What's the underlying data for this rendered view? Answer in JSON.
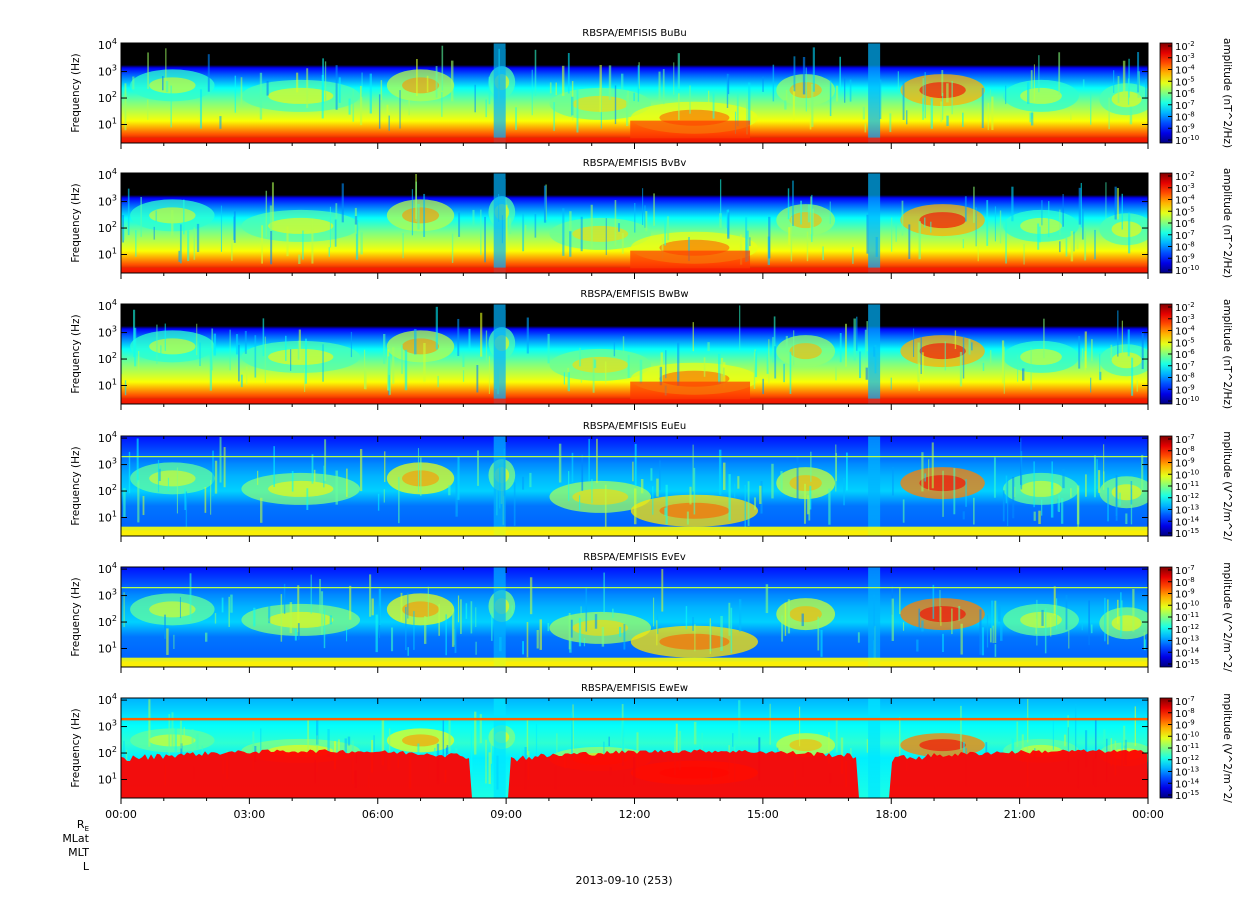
{
  "chart_data": [
    {
      "type": "heatmap",
      "title": "RBSPA/EMFISIS  BuBu",
      "ylabel": "Frequency (Hz)",
      "yscale": "log",
      "ylim": [
        2,
        12000
      ],
      "yticks": [
        {
          "base": "10",
          "exp": "1"
        },
        {
          "base": "10",
          "exp": "2"
        },
        {
          "base": "10",
          "exp": "3"
        },
        {
          "base": "10",
          "exp": "4"
        }
      ],
      "colorbar": {
        "label": "amplitude (nT^2/Hz)",
        "scale": "log",
        "range": [
          1e-10,
          0.01
        ],
        "ticks": [
          {
            "base": "10",
            "exp": "-2"
          },
          {
            "base": "10",
            "exp": "-3"
          },
          {
            "base": "10",
            "exp": "-4"
          },
          {
            "base": "10",
            "exp": "-5"
          },
          {
            "base": "10",
            "exp": "-6"
          },
          {
            "base": "10",
            "exp": "-7"
          },
          {
            "base": "10",
            "exp": "-8"
          },
          {
            "base": "10",
            "exp": "-9"
          },
          {
            "base": "10",
            "exp": "-10"
          }
        ]
      }
    },
    {
      "type": "heatmap",
      "title": "RBSPA/EMFISIS  BvBv",
      "ylabel": "Frequency (Hz)",
      "yscale": "log",
      "ylim": [
        2,
        12000
      ],
      "yticks": [
        {
          "base": "10",
          "exp": "1"
        },
        {
          "base": "10",
          "exp": "2"
        },
        {
          "base": "10",
          "exp": "3"
        },
        {
          "base": "10",
          "exp": "4"
        }
      ],
      "colorbar": {
        "label": "amplitude (nT^2/Hz)",
        "scale": "log",
        "range": [
          1e-10,
          0.01
        ],
        "ticks": [
          {
            "base": "10",
            "exp": "-2"
          },
          {
            "base": "10",
            "exp": "-3"
          },
          {
            "base": "10",
            "exp": "-4"
          },
          {
            "base": "10",
            "exp": "-5"
          },
          {
            "base": "10",
            "exp": "-6"
          },
          {
            "base": "10",
            "exp": "-7"
          },
          {
            "base": "10",
            "exp": "-8"
          },
          {
            "base": "10",
            "exp": "-9"
          },
          {
            "base": "10",
            "exp": "-10"
          }
        ]
      }
    },
    {
      "type": "heatmap",
      "title": "RBSPA/EMFISIS  BwBw",
      "ylabel": "Frequency (Hz)",
      "yscale": "log",
      "ylim": [
        2,
        12000
      ],
      "yticks": [
        {
          "base": "10",
          "exp": "1"
        },
        {
          "base": "10",
          "exp": "2"
        },
        {
          "base": "10",
          "exp": "3"
        },
        {
          "base": "10",
          "exp": "4"
        }
      ],
      "colorbar": {
        "label": "amplitude (nT^2/Hz)",
        "scale": "log",
        "range": [
          1e-10,
          0.01
        ],
        "ticks": [
          {
            "base": "10",
            "exp": "-2"
          },
          {
            "base": "10",
            "exp": "-3"
          },
          {
            "base": "10",
            "exp": "-4"
          },
          {
            "base": "10",
            "exp": "-5"
          },
          {
            "base": "10",
            "exp": "-6"
          },
          {
            "base": "10",
            "exp": "-7"
          },
          {
            "base": "10",
            "exp": "-8"
          },
          {
            "base": "10",
            "exp": "-9"
          },
          {
            "base": "10",
            "exp": "-10"
          }
        ]
      }
    },
    {
      "type": "heatmap",
      "title": "RBSPA/EMFISIS  EuEu",
      "ylabel": "Frequency (Hz)",
      "yscale": "log",
      "ylim": [
        2,
        12000
      ],
      "yticks": [
        {
          "base": "10",
          "exp": "1"
        },
        {
          "base": "10",
          "exp": "2"
        },
        {
          "base": "10",
          "exp": "3"
        },
        {
          "base": "10",
          "exp": "4"
        }
      ],
      "colorbar": {
        "label": "mplitude (V^2/m^2/",
        "scale": "log",
        "range": [
          1e-15,
          1e-07
        ],
        "ticks": [
          {
            "base": "10",
            "exp": "-7"
          },
          {
            "base": "10",
            "exp": "-8"
          },
          {
            "base": "10",
            "exp": "-9"
          },
          {
            "base": "10",
            "exp": "-10"
          },
          {
            "base": "10",
            "exp": "-11"
          },
          {
            "base": "10",
            "exp": "-12"
          },
          {
            "base": "10",
            "exp": "-13"
          },
          {
            "base": "10",
            "exp": "-14"
          },
          {
            "base": "10",
            "exp": "-15"
          }
        ]
      }
    },
    {
      "type": "heatmap",
      "title": "RBSPA/EMFISIS  EvEv",
      "ylabel": "Frequency (Hz)",
      "yscale": "log",
      "ylim": [
        2,
        12000
      ],
      "yticks": [
        {
          "base": "10",
          "exp": "1"
        },
        {
          "base": "10",
          "exp": "2"
        },
        {
          "base": "10",
          "exp": "3"
        },
        {
          "base": "10",
          "exp": "4"
        }
      ],
      "colorbar": {
        "label": "mplitude (V^2/m^2/",
        "scale": "log",
        "range": [
          1e-15,
          1e-07
        ],
        "ticks": [
          {
            "base": "10",
            "exp": "-7"
          },
          {
            "base": "10",
            "exp": "-8"
          },
          {
            "base": "10",
            "exp": "-9"
          },
          {
            "base": "10",
            "exp": "-10"
          },
          {
            "base": "10",
            "exp": "-11"
          },
          {
            "base": "10",
            "exp": "-12"
          },
          {
            "base": "10",
            "exp": "-13"
          },
          {
            "base": "10",
            "exp": "-14"
          },
          {
            "base": "10",
            "exp": "-15"
          }
        ]
      }
    },
    {
      "type": "heatmap",
      "title": "RBSPA/EMFISIS  EwEw",
      "ylabel": "Frequency (Hz)",
      "yscale": "log",
      "ylim": [
        2,
        12000
      ],
      "yticks": [
        {
          "base": "10",
          "exp": "1"
        },
        {
          "base": "10",
          "exp": "2"
        },
        {
          "base": "10",
          "exp": "3"
        },
        {
          "base": "10",
          "exp": "4"
        }
      ],
      "colorbar": {
        "label": "mplitude (V^2/m^2/",
        "scale": "log",
        "range": [
          1e-15,
          1e-07
        ],
        "ticks": [
          {
            "base": "10",
            "exp": "-7"
          },
          {
            "base": "10",
            "exp": "-8"
          },
          {
            "base": "10",
            "exp": "-9"
          },
          {
            "base": "10",
            "exp": "-10"
          },
          {
            "base": "10",
            "exp": "-11"
          },
          {
            "base": "10",
            "exp": "-12"
          },
          {
            "base": "10",
            "exp": "-13"
          },
          {
            "base": "10",
            "exp": "-14"
          },
          {
            "base": "10",
            "exp": "-15"
          }
        ]
      }
    }
  ],
  "xaxis": {
    "ticks": [
      "00:00",
      "03:00",
      "06:00",
      "09:00",
      "12:00",
      "15:00",
      "18:00",
      "21:00",
      "00:00"
    ],
    "ephemeris_labels": [
      "MLat",
      "MLT",
      "L"
    ],
    "re_label": {
      "main": "R",
      "sub": "E"
    },
    "date": "2013-09-10 (253)"
  },
  "colors": {
    "background_black": "#000000",
    "low": "#0000b4",
    "high": "#ff0000"
  }
}
